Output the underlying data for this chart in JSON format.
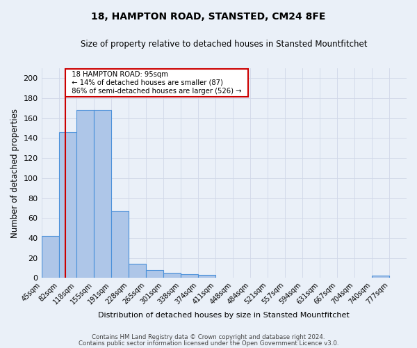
{
  "title1": "18, HAMPTON ROAD, STANSTED, CM24 8FE",
  "title2": "Size of property relative to detached houses in Stansted Mountfitchet",
  "xlabel": "Distribution of detached houses by size in Stansted Mountfitchet",
  "ylabel": "Number of detached properties",
  "footer1": "Contains HM Land Registry data © Crown copyright and database right 2024.",
  "footer2": "Contains public sector information licensed under the Open Government Licence v3.0.",
  "bin_labels": [
    "45sqm",
    "82sqm",
    "118sqm",
    "155sqm",
    "191sqm",
    "228sqm",
    "265sqm",
    "301sqm",
    "338sqm",
    "374sqm",
    "411sqm",
    "448sqm",
    "484sqm",
    "521sqm",
    "557sqm",
    "594sqm",
    "631sqm",
    "667sqm",
    "704sqm",
    "740sqm",
    "777sqm"
  ],
  "bar_values": [
    42,
    146,
    168,
    168,
    67,
    14,
    8,
    5,
    4,
    3,
    0,
    0,
    0,
    0,
    0,
    0,
    0,
    0,
    0,
    2,
    0
  ],
  "bar_color": "#aec6e8",
  "bar_edge_color": "#4a90d9",
  "subject_line_color": "#cc0000",
  "ylim": [
    0,
    210
  ],
  "yticks": [
    0,
    20,
    40,
    60,
    80,
    100,
    120,
    140,
    160,
    180,
    200
  ],
  "annotation_text": "  18 HAMPTON ROAD: 95sqm  \n  ← 14% of detached houses are smaller (87)  \n  86% of semi-detached houses are larger (526) →  ",
  "annotation_box_color": "#ffffff",
  "annotation_box_edge": "#cc0000",
  "grid_color": "#d0d8e8",
  "bg_color": "#eaf0f8",
  "bin_edges_sqm": [
    45,
    82,
    118,
    155,
    191,
    228,
    265,
    301,
    338,
    374,
    411,
    448,
    484,
    521,
    557,
    594,
    631,
    667,
    704,
    740,
    777
  ],
  "subject_sqm": 95
}
